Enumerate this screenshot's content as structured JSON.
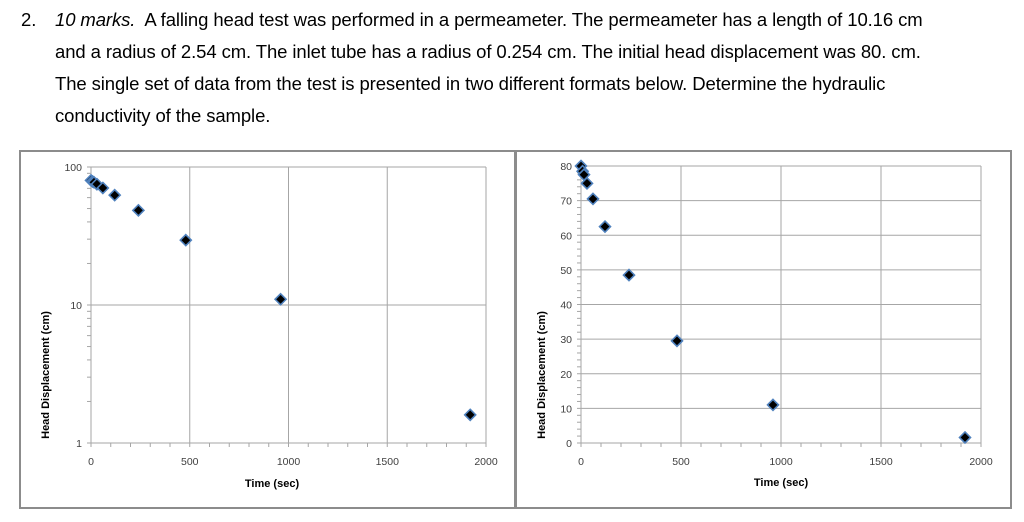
{
  "question": {
    "number": "2.",
    "marks": "10 marks.",
    "lines": [
      "A falling head test was performed in a permeameter.  The permeameter has a length of 10.16 cm",
      "and a radius of 2.54 cm.  The inlet tube has a radius of 0.254 cm.  The initial head displacement was 80. cm.",
      "The single set of data from the test is presented in two different formats below.  Determine the hydraulic",
      "conductivity of the sample."
    ]
  },
  "colors": {
    "marker_fill": "#000000",
    "marker_outline": "#4f81bd",
    "gridline": "#a6a6a6",
    "axis": "#a6a6a6",
    "frame": "#8c8c8c",
    "tick_label": "#404040"
  },
  "chart_data": [
    {
      "type": "scatter",
      "title": "",
      "xlabel": "Time (sec)",
      "ylabel": "Head Displacement (cm)",
      "yscale": "log",
      "xlim": [
        0,
        2000
      ],
      "ylim": [
        1,
        100
      ],
      "xticks": [
        "0",
        "500",
        "1000",
        "1500",
        "2000"
      ],
      "yticks": [
        "1",
        "10",
        "100"
      ],
      "grid": true,
      "legend": "none",
      "series": [
        {
          "name": "Head Displacement",
          "x": [
            0,
            8,
            15,
            30,
            60,
            120,
            240,
            480,
            960,
            1920
          ],
          "y": [
            80,
            78.5,
            77.5,
            75,
            70.5,
            62.5,
            48.5,
            29.5,
            11,
            1.6
          ]
        }
      ]
    },
    {
      "type": "scatter",
      "title": "",
      "xlabel": "Time (sec)",
      "ylabel": "Head Displacement (cm)",
      "yscale": "linear",
      "xlim": [
        0,
        2000
      ],
      "ylim": [
        0,
        80
      ],
      "xticks": [
        "0",
        "500",
        "1000",
        "1500",
        "2000"
      ],
      "yticks": [
        "0",
        "10",
        "20",
        "30",
        "40",
        "50",
        "60",
        "70",
        "80"
      ],
      "grid": true,
      "legend": "none",
      "series": [
        {
          "name": "Head Displacement",
          "x": [
            0,
            8,
            15,
            30,
            60,
            120,
            240,
            480,
            960,
            1920
          ],
          "y": [
            80,
            78.5,
            77.5,
            75,
            70.5,
            62.5,
            48.5,
            29.5,
            11,
            1.6
          ]
        }
      ]
    }
  ]
}
